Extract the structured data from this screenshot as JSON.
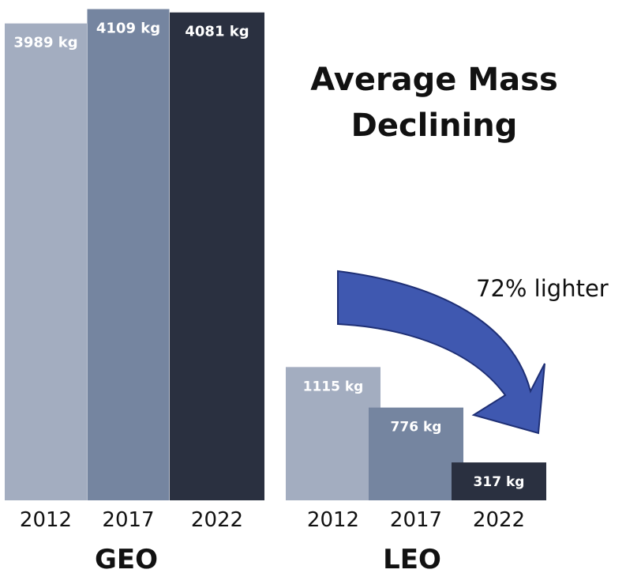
{
  "title_line1": "Average Mass",
  "title_line2": "Declining",
  "annotation": "72% lighter",
  "colors": {
    "2012": "#a3adc0",
    "2017": "#7585a0",
    "2022": "#2a3040",
    "arrow_fill": "#3f58b0",
    "arrow_stroke": "#1e2f75"
  },
  "chart_data": [
    {
      "type": "bar",
      "group_label": "GEO",
      "categories": [
        "2012",
        "2017",
        "2022"
      ],
      "values": [
        3989,
        4109,
        4081
      ],
      "value_labels": [
        "3989 kg",
        "4109 kg",
        "4081 kg"
      ],
      "unit": "kg"
    },
    {
      "type": "bar",
      "group_label": "LEO",
      "categories": [
        "2012",
        "2017",
        "2022"
      ],
      "values": [
        1115,
        776,
        317
      ],
      "value_labels": [
        "1115 kg",
        "776 kg",
        "317 kg"
      ],
      "unit": "kg"
    }
  ]
}
